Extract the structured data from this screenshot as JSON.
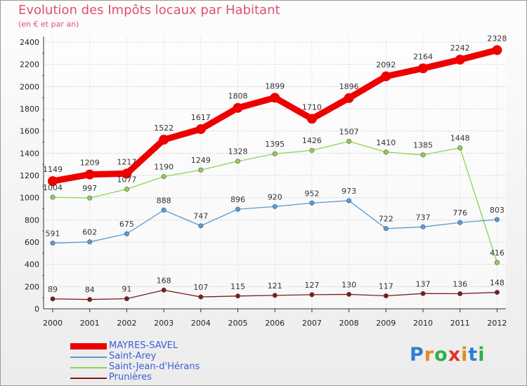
{
  "title": "Evolution des Impôts locaux par Habitant",
  "subtitle": "(en € et par an)",
  "logo": {
    "text": "Proxiti",
    "letter_colors": [
      "#2a7fd4",
      "#e6891e",
      "#2bb04a",
      "#e0302a",
      "#e6891e",
      "#2a7fd4",
      "#2bb04a"
    ]
  },
  "chart_data": {
    "type": "line",
    "x": [
      "2000",
      "2001",
      "2002",
      "2003",
      "2004",
      "2005",
      "2006",
      "2007",
      "2008",
      "2009",
      "2010",
      "2011",
      "2012"
    ],
    "ylim": [
      0,
      2400
    ],
    "yticks": [
      0,
      200,
      400,
      600,
      800,
      1000,
      1200,
      1400,
      1600,
      1800,
      2000,
      2200,
      2400
    ],
    "grid": true,
    "legend_position": "bottom-left",
    "series": [
      {
        "name": "MAYRES-SAVEL",
        "color": "#ee0000",
        "width": 9,
        "marker": 7,
        "values": [
          1149,
          1209,
          1217,
          1522,
          1617,
          1808,
          1899,
          1710,
          1896,
          2092,
          2164,
          2242,
          2328
        ]
      },
      {
        "name": "Saint-Arey",
        "color": "#5b9bd5",
        "width": 1.3,
        "marker": 3.2,
        "values": [
          591,
          602,
          675,
          888,
          747,
          896,
          920,
          952,
          973,
          722,
          737,
          776,
          803
        ]
      },
      {
        "name": "Saint-Jean-d'Hérans",
        "color": "#8fd14f",
        "width": 1.3,
        "marker": 3.2,
        "values": [
          1004,
          997,
          1077,
          1190,
          1249,
          1328,
          1395,
          1426,
          1507,
          1410,
          1385,
          1448,
          416
        ]
      },
      {
        "name": "Prunières",
        "color": "#7b1c1c",
        "width": 1.3,
        "marker": 3.2,
        "values": [
          89,
          84,
          91,
          168,
          107,
          115,
          121,
          127,
          130,
          117,
          137,
          136,
          148
        ]
      }
    ]
  }
}
